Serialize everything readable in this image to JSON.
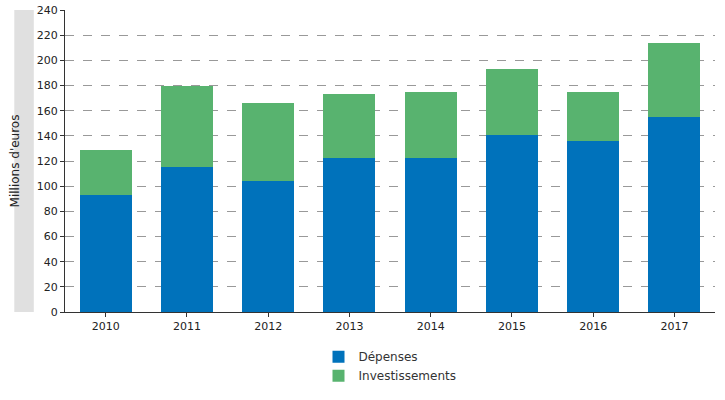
{
  "chart_data": {
    "type": "bar",
    "stacked": true,
    "grid": true,
    "legend": "bottom",
    "ylabel": "Millions d'euros",
    "categories": [
      "2010",
      "2011",
      "2012",
      "2013",
      "2014",
      "2015",
      "2016",
      "2017"
    ],
    "series": [
      {
        "name": "Dépenses",
        "color": "#0072bb",
        "values": [
          93,
          115,
          104,
          122,
          122,
          141,
          136,
          155
        ]
      },
      {
        "name": "Investissements",
        "color": "#58b36f",
        "values": [
          36,
          65,
          62,
          51,
          53,
          52,
          39,
          59
        ]
      }
    ],
    "ylim": [
      0,
      240
    ],
    "yticks": [
      0,
      20,
      40,
      60,
      80,
      100,
      120,
      140,
      160,
      180,
      200,
      220,
      240
    ]
  }
}
